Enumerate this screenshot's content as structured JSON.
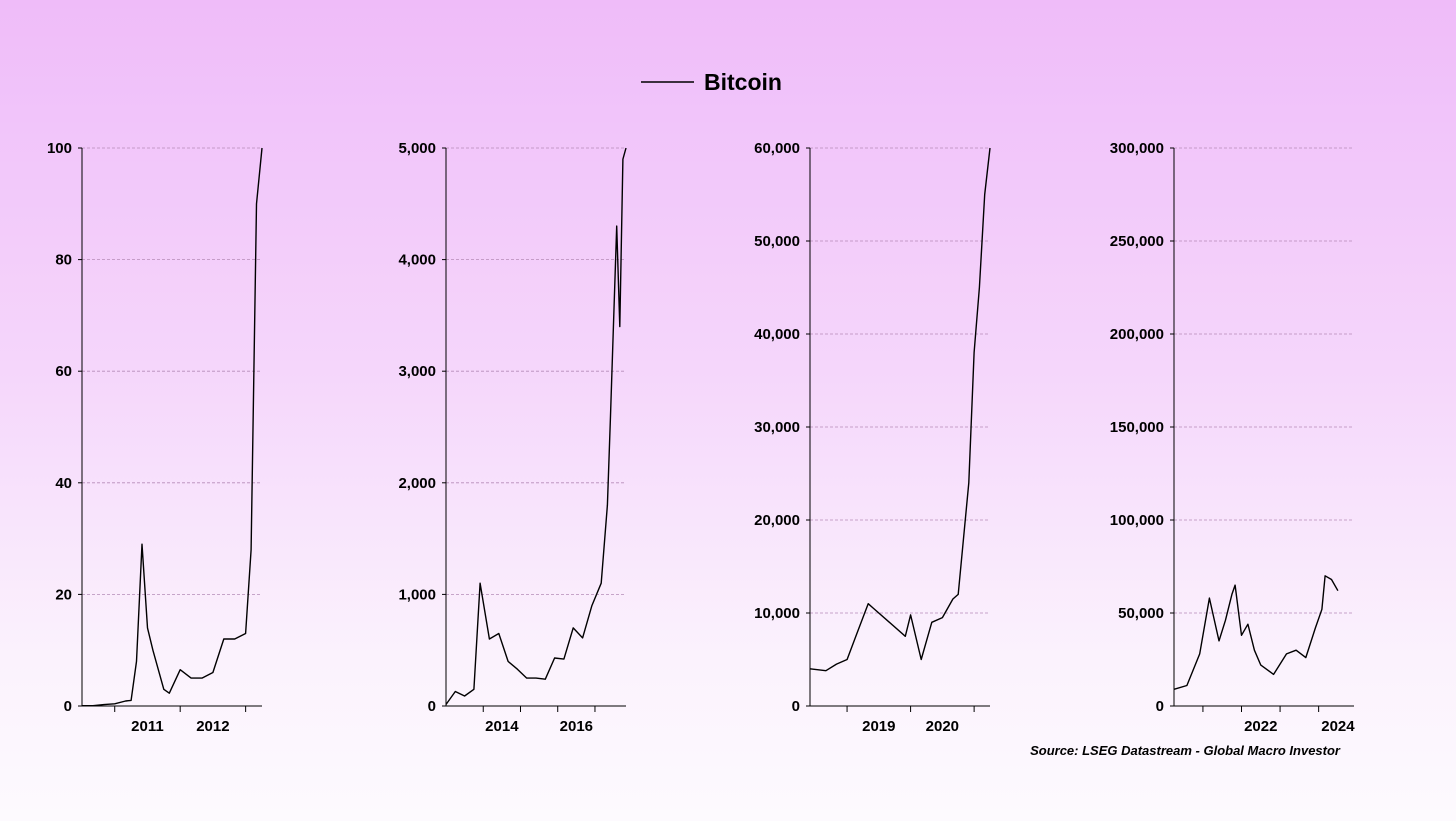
{
  "legend": {
    "label": "Bitcoin",
    "line_color": "#000000"
  },
  "source": "Source: LSEG Datastream - Global Macro Investor",
  "colors": {
    "line": "#000000",
    "grid": "#b58bb8",
    "axis": "#000000"
  },
  "chart_data": [
    {
      "type": "line",
      "series": [
        {
          "name": "Bitcoin",
          "x": [
            "2010-07",
            "2010-09",
            "2010-11",
            "2011-01",
            "2011-03",
            "2011-04",
            "2011-05",
            "2011-06",
            "2011-07",
            "2011-08",
            "2011-10",
            "2011-11",
            "2012-01",
            "2012-03",
            "2012-05",
            "2012-07",
            "2012-09",
            "2012-11",
            "2013-01",
            "2013-02",
            "2013-03",
            "2013-04"
          ],
          "values": [
            0.06,
            0.06,
            0.25,
            0.4,
            0.9,
            1,
            8,
            29,
            14,
            10,
            3,
            2.3,
            6.5,
            5,
            5,
            6,
            12,
            12,
            13,
            28,
            90,
            100
          ]
        }
      ],
      "xticks": [
        "2011",
        "2012"
      ],
      "yticks": [
        "0",
        "20",
        "40",
        "60",
        "80",
        "100"
      ],
      "ylim": [
        0,
        100
      ],
      "xlim": [
        "2010-07",
        "2013-04"
      ]
    },
    {
      "type": "line",
      "series": [
        {
          "name": "Bitcoin",
          "x": [
            "2013-01",
            "2013-04",
            "2013-07",
            "2013-10",
            "2013-12",
            "2014-03",
            "2014-06",
            "2014-09",
            "2014-12",
            "2015-03",
            "2015-06",
            "2015-09",
            "2015-12",
            "2016-03",
            "2016-06",
            "2016-09",
            "2016-12",
            "2017-03",
            "2017-05",
            "2017-06",
            "2017-08",
            "2017-09",
            "2017-10",
            "2017-11"
          ],
          "values": [
            13,
            130,
            90,
            150,
            1100,
            600,
            650,
            400,
            330,
            250,
            250,
            240,
            430,
            420,
            700,
            610,
            900,
            1100,
            1800,
            2600,
            4300,
            3400,
            4900,
            5000
          ]
        }
      ],
      "xticks": [
        "2014",
        "2016"
      ],
      "yticks": [
        "0",
        "1,000",
        "2,000",
        "3,000",
        "4,000",
        "5,000"
      ],
      "ylim": [
        0,
        5000
      ],
      "xlim": [
        "2013-01",
        "2017-11"
      ]
    },
    {
      "type": "line",
      "series": [
        {
          "name": "Bitcoin",
          "x": [
            "2018-06",
            "2018-09",
            "2018-11",
            "2019-01",
            "2019-03",
            "2019-05",
            "2019-06",
            "2019-09",
            "2019-12",
            "2020-01",
            "2020-03",
            "2020-05",
            "2020-07",
            "2020-09",
            "2020-10",
            "2020-11",
            "2020-12",
            "2021-01",
            "2021-02",
            "2021-03",
            "2021-04"
          ],
          "values": [
            4000,
            3800,
            4500,
            5000,
            8000,
            11000,
            10500,
            9000,
            7500,
            9800,
            5000,
            9000,
            9500,
            11500,
            12000,
            18000,
            24000,
            38000,
            45000,
            55000,
            60000
          ]
        }
      ],
      "xticks": [
        "2019",
        "2020"
      ],
      "yticks": [
        "0",
        "10,000",
        "20,000",
        "30,000",
        "40,000",
        "50,000",
        "60,000"
      ],
      "ylim": [
        0,
        60000
      ],
      "xlim": [
        "2018-06",
        "2021-04"
      ]
    },
    {
      "type": "line",
      "series": [
        {
          "name": "Bitcoin",
          "x": [
            "2020-04",
            "2020-08",
            "2020-12",
            "2021-03",
            "2021-06",
            "2021-08",
            "2021-10",
            "2021-11",
            "2022-01",
            "2022-03",
            "2022-05",
            "2022-07",
            "2022-11",
            "2023-03",
            "2023-06",
            "2023-09",
            "2023-12",
            "2024-02",
            "2024-03",
            "2024-05",
            "2024-07"
          ],
          "values": [
            9000,
            11000,
            28000,
            58000,
            35000,
            46000,
            60000,
            65000,
            38000,
            44000,
            30000,
            22000,
            17000,
            28000,
            30000,
            26000,
            42000,
            52000,
            70000,
            68000,
            62000
          ]
        }
      ],
      "xticks": [
        "2022",
        "2024"
      ],
      "yticks": [
        "0",
        "50,000",
        "100,000",
        "150,000",
        "200,000",
        "250,000",
        "300,000"
      ],
      "ylim": [
        0,
        300000
      ],
      "xlim": [
        "2020-04",
        "2024-12"
      ]
    }
  ]
}
